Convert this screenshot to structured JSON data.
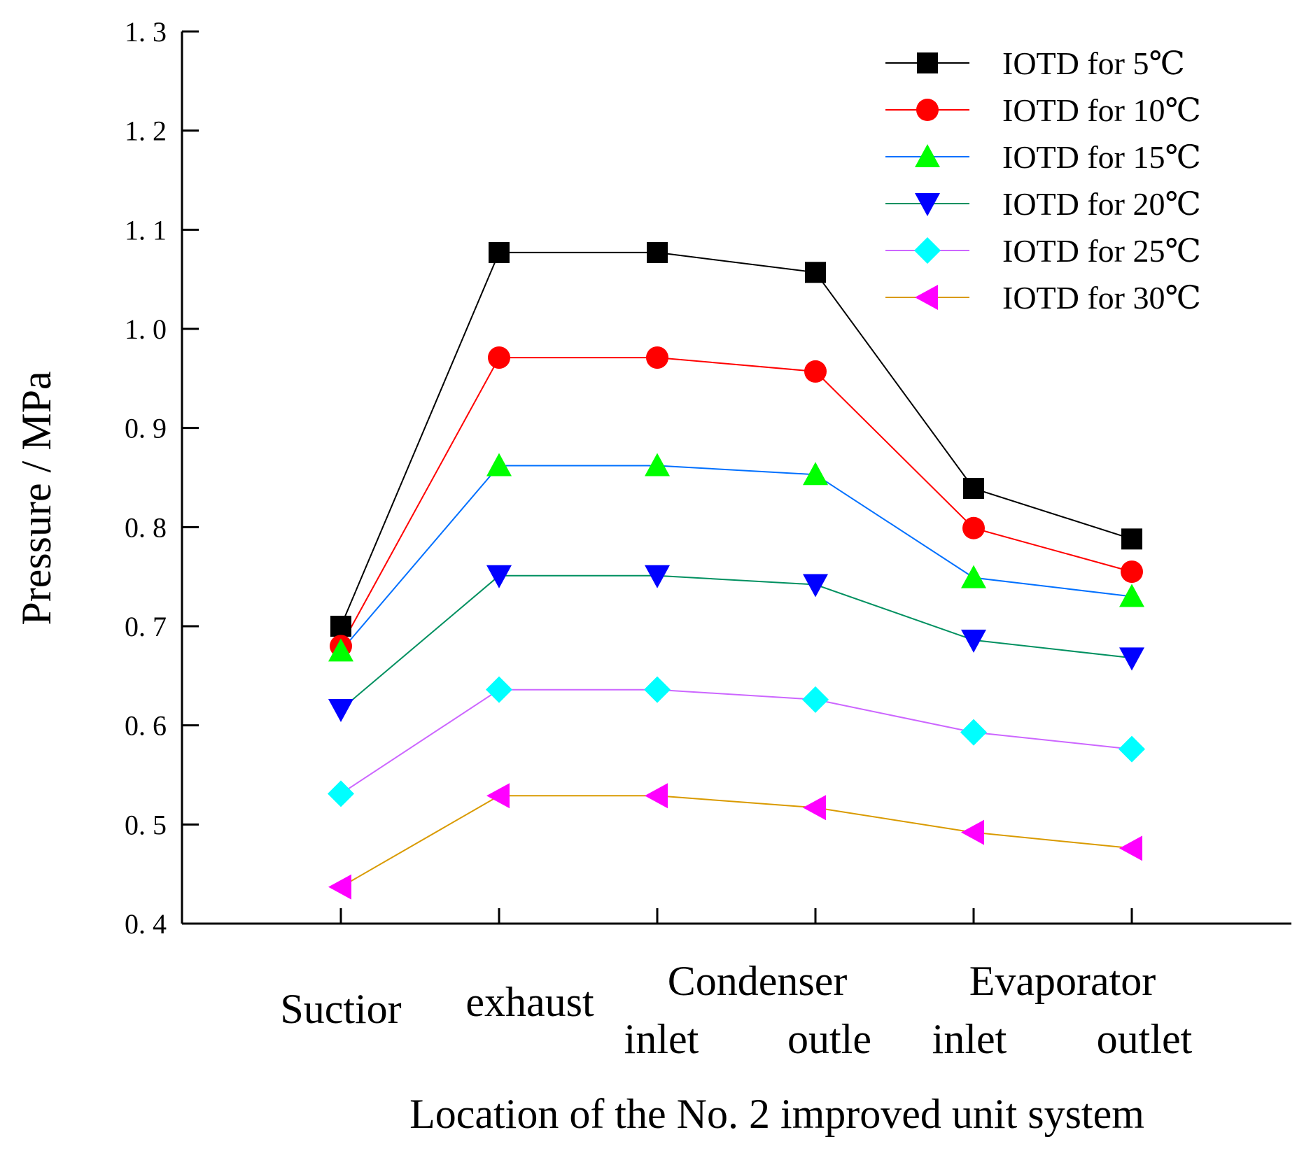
{
  "chart_data": {
    "type": "line",
    "xlabel": "Location of the No. 2 improved unit system",
    "ylabel": "Pressure / MPa",
    "ylim": [
      0.4,
      1.3
    ],
    "yticks": [
      "0. 4",
      "0. 5",
      "0. 6",
      "0. 7",
      "0. 8",
      "0. 9",
      "1. 0",
      "1. 1",
      "1. 2",
      "1. 3"
    ],
    "categories": [
      "Suction",
      "exhaust",
      "Condenser inlet",
      "Condenser outlet",
      "Evaporator inlet",
      "Evaporator outlet"
    ],
    "category_labels_top": [
      "",
      "",
      "Condenser",
      "",
      "Evaporator",
      ""
    ],
    "category_labels_bottom": [
      "Suctior",
      "exhaust",
      "inlet",
      "outle",
      "inlet",
      "outlet"
    ],
    "grid": false,
    "legend_position": "top-right",
    "series": [
      {
        "name": "IOTD for 5℃",
        "values": [
          0.7,
          1.077,
          1.077,
          1.057,
          0.839,
          0.788
        ],
        "color": "#000000",
        "line_color": "#000000",
        "marker": "square"
      },
      {
        "name": "IOTD for 10℃",
        "values": [
          0.68,
          0.971,
          0.971,
          0.957,
          0.799,
          0.755
        ],
        "color": "#ff0000",
        "line_color": "#ff0000",
        "marker": "circle"
      },
      {
        "name": "IOTD for 15℃",
        "values": [
          0.675,
          0.862,
          0.862,
          0.853,
          0.749,
          0.73
        ],
        "color": "#00ff00",
        "line_color": "#0070ff",
        "marker": "triangle-up"
      },
      {
        "name": "IOTD for 20℃",
        "values": [
          0.616,
          0.751,
          0.751,
          0.742,
          0.686,
          0.668
        ],
        "color": "#0000ff",
        "line_color": "#009060",
        "marker": "triangle-down"
      },
      {
        "name": "IOTD for 25℃",
        "values": [
          0.531,
          0.636,
          0.636,
          0.626,
          0.593,
          0.576
        ],
        "color": "#00ffff",
        "line_color": "#cc66ff",
        "marker": "diamond"
      },
      {
        "name": "IOTD for 30℃",
        "values": [
          0.437,
          0.529,
          0.529,
          0.517,
          0.492,
          0.476
        ],
        "color": "#ff00ff",
        "line_color": "#d99a00",
        "marker": "triangle-left"
      }
    ]
  }
}
